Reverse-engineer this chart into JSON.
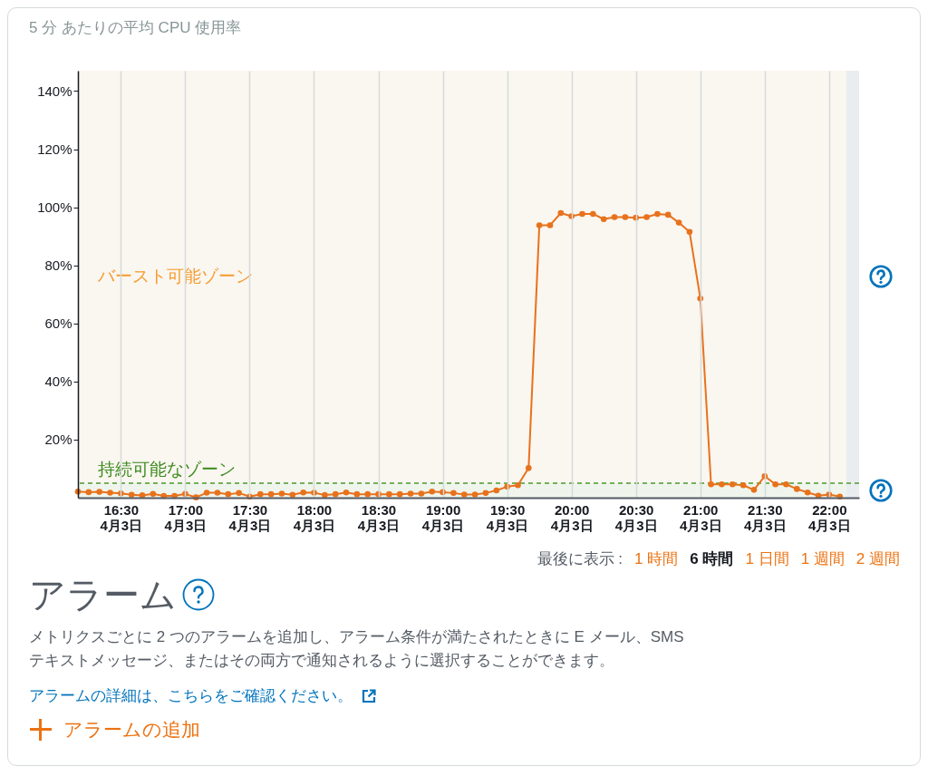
{
  "chart_data": {
    "type": "line",
    "title": "5 分 あたりの平均 CPU 使用率",
    "x": [
      "--04-03T16:10",
      "--04-03T16:15",
      "--04-03T16:20",
      "--04-03T16:25",
      "--04-03T16:30",
      "--04-03T16:35",
      "--04-03T16:40",
      "--04-03T16:45",
      "--04-03T16:50",
      "--04-03T16:55",
      "--04-03T17:00",
      "--04-03T17:05",
      "--04-03T17:10",
      "--04-03T17:15",
      "--04-03T17:20",
      "--04-03T17:25",
      "--04-03T17:30",
      "--04-03T17:35",
      "--04-03T17:40",
      "--04-03T17:45",
      "--04-03T17:50",
      "--04-03T17:55",
      "--04-03T18:00",
      "--04-03T18:05",
      "--04-03T18:10",
      "--04-03T18:15",
      "--04-03T18:20",
      "--04-03T18:25",
      "--04-03T18:30",
      "--04-03T18:35",
      "--04-03T18:40",
      "--04-03T18:45",
      "--04-03T18:50",
      "--04-03T18:55",
      "--04-03T19:00",
      "--04-03T19:05",
      "--04-03T19:10",
      "--04-03T19:15",
      "--04-03T19:20",
      "--04-03T19:25",
      "--04-03T19:30",
      "--04-03T19:35",
      "--04-03T19:40",
      "--04-03T19:45",
      "--04-03T19:50",
      "--04-03T19:55",
      "--04-03T20:00",
      "--04-03T20:05",
      "--04-03T20:10",
      "--04-03T20:15",
      "--04-03T20:20",
      "--04-03T20:25",
      "--04-03T20:30",
      "--04-03T20:35",
      "--04-03T20:40",
      "--04-03T20:45",
      "--04-03T20:50",
      "--04-03T20:55",
      "--04-03T21:00",
      "--04-03T21:05",
      "--04-03T21:10",
      "--04-03T21:15",
      "--04-03T21:20",
      "--04-03T21:25",
      "--04-03T21:30",
      "--04-03T21:35",
      "--04-03T21:40",
      "--04-03T21:45",
      "--04-03T21:50",
      "--04-03T21:55",
      "--04-03T22:00",
      "--04-03T22:05"
    ],
    "series": [
      {
        "color": "#e8721c",
        "values": [
          2.1,
          1.9,
          2.0,
          1.7,
          1.5,
          1.0,
          0.8,
          1.3,
          0.6,
          0.6,
          1.3,
          0.1,
          1.7,
          1.7,
          1.2,
          1.6,
          0.4,
          1.2,
          1.2,
          1.4,
          1.0,
          1.8,
          1.7,
          0.9,
          1.2,
          1.8,
          1.2,
          1.2,
          1.2,
          1.2,
          1.2,
          1.4,
          1.4,
          2.1,
          1.9,
          1.6,
          1.1,
          1.1,
          1.6,
          2.5,
          3.8,
          4.3,
          10.2,
          93.8,
          93.8,
          98.0,
          96.9,
          97.7,
          97.7,
          95.9,
          96.6,
          96.6,
          96.4,
          96.6,
          97.7,
          97.4,
          94.7,
          91.5,
          68.6,
          4.6,
          4.6,
          4.6,
          4.3,
          2.7,
          7.4,
          4.6,
          4.6,
          3.0,
          1.8,
          0.7,
          1.1,
          0.4
        ]
      }
    ],
    "xlim": [
      "--04-03T16:10",
      "--04-03T22:14"
    ],
    "xticks": [
      {
        "value": "--04-03T16:30",
        "label": "16:30\n4月3日"
      },
      {
        "value": "--04-03T17:00",
        "label": "17:00\n4月3日"
      },
      {
        "value": "--04-03T17:30",
        "label": "17:30\n4月3日"
      },
      {
        "value": "--04-03T18:00",
        "label": "18:00\n4月3日"
      },
      {
        "value": "--04-03T18:30",
        "label": "18:30\n4月3日"
      },
      {
        "value": "--04-03T19:00",
        "label": "19:00\n4月3日"
      },
      {
        "value": "--04-03T19:30",
        "label": "19:30\n4月3日"
      },
      {
        "value": "--04-03T20:00",
        "label": "20:00\n4月3日"
      },
      {
        "value": "--04-03T20:30",
        "label": "20:30\n4月3日"
      },
      {
        "value": "--04-03T21:00",
        "label": "21:00\n4月3日"
      },
      {
        "value": "--04-03T21:30",
        "label": "21:30\n4月3日"
      },
      {
        "value": "--04-03T22:00",
        "label": "22:00\n4月3日"
      }
    ],
    "ylim": [
      0,
      147
    ],
    "yticks": [
      {
        "value": 20,
        "label": "20%"
      },
      {
        "value": 40,
        "label": "40%"
      },
      {
        "value": 60,
        "label": "60%"
      },
      {
        "value": 80,
        "label": "80%"
      },
      {
        "value": 100,
        "label": "100%"
      },
      {
        "value": 120,
        "label": "120%"
      },
      {
        "value": 140,
        "label": "140%"
      }
    ],
    "grid": "x",
    "marker": "circle",
    "line_style": "solid",
    "bands": [
      {
        "axis": "y",
        "from": 5,
        "to": 147,
        "label": "バースト可能ゾーン",
        "color": "#faf6f0"
      },
      {
        "axis": "y",
        "from": 0,
        "to": 5,
        "label": "持続可能なゾーン",
        "color": "#eff5ec"
      },
      {
        "axis": "x",
        "from": "--04-03T22:08",
        "to": "--04-03T22:14",
        "color": "#e9edef"
      }
    ],
    "ref_lines": [
      {
        "axis": "y",
        "value": 5,
        "color": "#4a9a2b",
        "line_style": "dashed"
      }
    ],
    "annotations": [
      "最後に表示 :",
      "1 時間",
      "6 時間",
      "1 日間",
      "1 週間",
      "2 週間",
      "アラーム",
      "メトリクスごとに 2 つのアラームを追加し、アラーム条件が満たされたときに E メール、SMS\nテキストメッセージ、またはその両方で通知されるように選択することができます。",
      "アラームの詳細は、こちらをご確認ください。",
      "アラームの追加"
    ]
  }
}
